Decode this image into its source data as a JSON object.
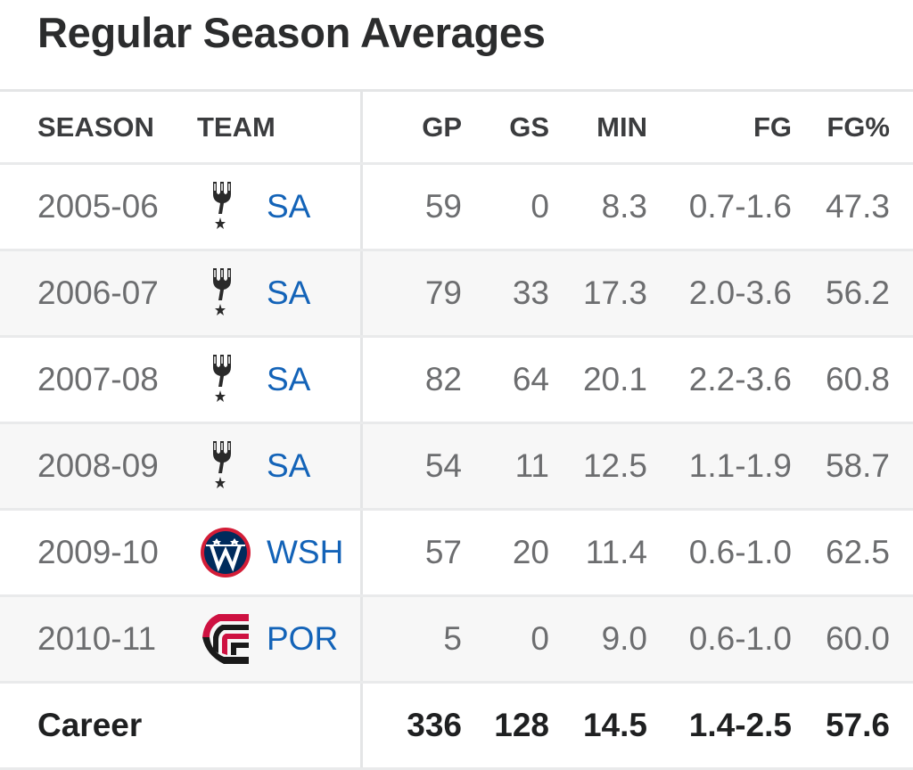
{
  "title": "Regular Season Averages",
  "columns": {
    "season": "SEASON",
    "team": "TEAM",
    "gp": "GP",
    "gs": "GS",
    "min": "MIN",
    "fg": "FG",
    "fgp": "FG%"
  },
  "rows": [
    {
      "season": "2005-06",
      "team": "SA",
      "logo": "spurs-logo",
      "gp": "59",
      "gs": "0",
      "min": "8.3",
      "fg": "0.7-1.6",
      "fgp": "47.3"
    },
    {
      "season": "2006-07",
      "team": "SA",
      "logo": "spurs-logo",
      "gp": "79",
      "gs": "33",
      "min": "17.3",
      "fg": "2.0-3.6",
      "fgp": "56.2"
    },
    {
      "season": "2007-08",
      "team": "SA",
      "logo": "spurs-logo",
      "gp": "82",
      "gs": "64",
      "min": "20.1",
      "fg": "2.2-3.6",
      "fgp": "60.8"
    },
    {
      "season": "2008-09",
      "team": "SA",
      "logo": "spurs-logo",
      "gp": "54",
      "gs": "11",
      "min": "12.5",
      "fg": "1.1-1.9",
      "fgp": "58.7"
    },
    {
      "season": "2009-10",
      "team": "WSH",
      "logo": "wizards-logo",
      "gp": "57",
      "gs": "20",
      "min": "11.4",
      "fg": "0.6-1.0",
      "fgp": "62.5"
    },
    {
      "season": "2010-11",
      "team": "POR",
      "logo": "blazers-logo",
      "gp": "5",
      "gs": "0",
      "min": "9.0",
      "fg": "0.6-1.0",
      "fgp": "60.0"
    }
  ],
  "career": {
    "label": "Career",
    "gp": "336",
    "gs": "128",
    "min": "14.5",
    "fg": "1.4-2.5",
    "fgp": "57.6"
  },
  "colors": {
    "team_link": "#1363b8",
    "text": "#6c6d6f",
    "header_text": "#3b3c3e",
    "alt_row": "#f7f7f7"
  }
}
